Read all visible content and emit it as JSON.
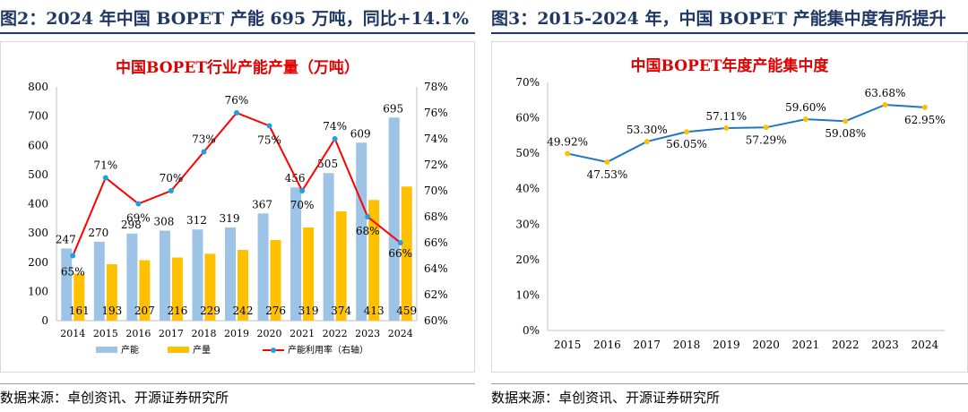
{
  "left_panel": {
    "header": "图2：2024 年中国 BOPET 产能 695 万吨，同比+14.1%",
    "source": "数据来源：卓创资讯、开源证券研究所"
  },
  "right_panel": {
    "header": "图3：2015-2024 年，中国 BOPET 产能集中度有所提升",
    "source": "数据来源：卓创资讯、开源证券研究所"
  },
  "chart_data": [
    {
      "type": "bar",
      "title": "中国BOPET行业产能产量（万吨）",
      "categories": [
        "2014",
        "2015",
        "2016",
        "2017",
        "2018",
        "2019",
        "2020",
        "2021",
        "2022",
        "2023",
        "2024"
      ],
      "series": [
        {
          "name": "产能",
          "type": "bar",
          "color": "#9dc3e6",
          "values": [
            247,
            270,
            298,
            308,
            312,
            319,
            367,
            456,
            505,
            609,
            695
          ]
        },
        {
          "name": "产量",
          "type": "bar",
          "color": "#ffc000",
          "values": [
            161,
            193,
            207,
            216,
            229,
            242,
            276,
            319,
            374,
            413,
            459
          ]
        },
        {
          "name": "产能利用率（右轴）",
          "type": "line",
          "axis": "right",
          "color": "#ff0000",
          "marker_color": "#1fa0e0",
          "values": [
            65,
            71,
            69,
            70,
            73,
            76,
            75,
            70,
            74,
            68,
            66
          ],
          "labels": [
            "65%",
            "71%",
            "69%",
            "70%",
            "73%",
            "76%",
            "75%",
            "70%",
            "74%",
            "68%",
            "66%"
          ]
        }
      ],
      "y_left": {
        "ylim": [
          0,
          800
        ],
        "ticks": [
          "0",
          "100",
          "200",
          "300",
          "400",
          "500",
          "600",
          "700",
          "800"
        ]
      },
      "y_right": {
        "ylim": [
          60,
          78
        ],
        "ticks": [
          "60%",
          "62%",
          "64%",
          "66%",
          "68%",
          "70%",
          "72%",
          "74%",
          "76%",
          "78%"
        ]
      },
      "legend_position": "bottom",
      "grid": false
    },
    {
      "type": "line",
      "title": "中国BOPET年度产能集中度",
      "categories": [
        "2015",
        "2016",
        "2017",
        "2018",
        "2019",
        "2020",
        "2021",
        "2022",
        "2023",
        "2024"
      ],
      "series": [
        {
          "name": "",
          "color": "#1f77c4",
          "marker_color": "#ffc000",
          "values": [
            49.92,
            47.53,
            53.3,
            56.05,
            57.11,
            57.29,
            59.6,
            59.08,
            63.68,
            62.95
          ],
          "labels": [
            "49.92%",
            "47.53%",
            "53.30%",
            "56.05%",
            "57.11%",
            "57.29%",
            "59.60%",
            "59.08%",
            "63.68%",
            "62.95%"
          ]
        }
      ],
      "ylim": [
        0,
        70
      ],
      "y_ticks": [
        "0%",
        "10%",
        "20%",
        "30%",
        "40%",
        "50%",
        "60%",
        "70%"
      ],
      "legend_position": "none",
      "grid": false
    }
  ]
}
